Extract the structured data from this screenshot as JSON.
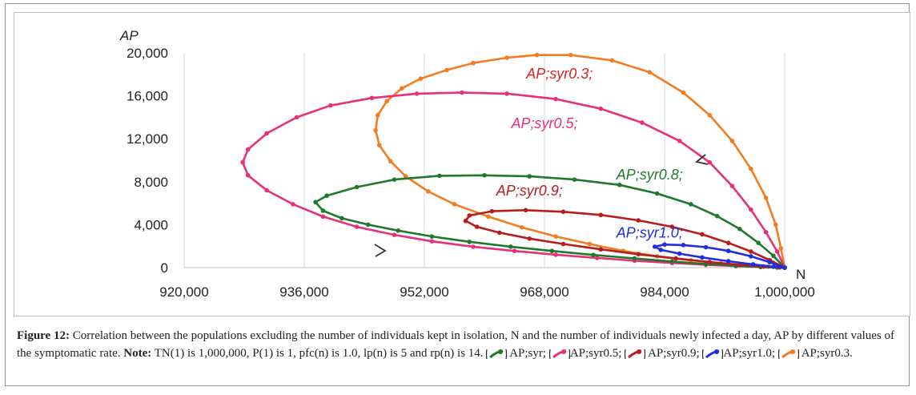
{
  "chart_data": {
    "type": "line",
    "title": "",
    "xlabel": "N",
    "ylabel": "AP",
    "xlim": [
      920000,
      1000000
    ],
    "ylim": [
      0,
      20000
    ],
    "x_ticks": [
      "920,000",
      "936,000",
      "952,000",
      "968,000",
      "984,000",
      "1,000,000"
    ],
    "y_ticks": [
      "0",
      "4,000",
      "8,000",
      "12,000",
      "16,000",
      "20,000"
    ],
    "x_tick_values": [
      920000,
      936000,
      952000,
      968000,
      984000,
      1000000
    ],
    "y_tick_values": [
      0,
      4000,
      8000,
      12000,
      16000,
      20000
    ],
    "grid": "vertical",
    "series": [
      {
        "name": "AP;syr0.3;",
        "color": "#f47c20",
        "x": [
          1000000,
          999500,
          998800,
          997500,
          995500,
          993000,
          990000,
          986500,
          982000,
          977000,
          971500,
          967000,
          963000,
          958500,
          955000,
          951500,
          949000,
          947000,
          945800,
          945500,
          946000,
          947500,
          949500,
          952500,
          956000,
          960500,
          965000,
          969500,
          974000,
          978500,
          983000,
          987500,
          991500,
          995000,
          997800,
          999400,
          1000000
        ],
        "y": [
          0,
          1800,
          4000,
          6500,
          9200,
          11800,
          14200,
          16300,
          18200,
          19300,
          19800,
          19800,
          19550,
          19050,
          18400,
          17600,
          16700,
          15500,
          14200,
          12800,
          11400,
          9900,
          8500,
          7100,
          5900,
          4750,
          3750,
          2900,
          2200,
          1550,
          1050,
          680,
          400,
          200,
          80,
          20,
          0
        ]
      },
      {
        "name": "AP;syr0.5;",
        "color": "#e8307a",
        "x": [
          1000000,
          999000,
          997500,
          995500,
          993000,
          990000,
          986000,
          981000,
          975500,
          969500,
          963000,
          957000,
          951000,
          945000,
          939500,
          935000,
          931000,
          928500,
          927800,
          928500,
          931000,
          934500,
          938500,
          943000,
          948000,
          953000,
          958500,
          964000,
          969500,
          975000,
          980000,
          985000,
          989500,
          993500,
          996800,
          999000,
          1000000
        ],
        "y": [
          0,
          1500,
          3300,
          5400,
          7600,
          9800,
          11800,
          13500,
          14800,
          15700,
          16200,
          16300,
          16200,
          15800,
          15100,
          14000,
          12500,
          11000,
          9800,
          8600,
          7200,
          5900,
          4750,
          3800,
          3050,
          2450,
          1950,
          1550,
          1200,
          900,
          640,
          430,
          260,
          140,
          60,
          15,
          0
        ]
      },
      {
        "name": "AP;syr0.8;",
        "color": "#1e7a2a",
        "x": [
          1000000,
          998500,
          996500,
          994000,
          991000,
          987500,
          983000,
          978000,
          972000,
          966000,
          960000,
          954000,
          948000,
          943000,
          939000,
          937500,
          938500,
          941000,
          944500,
          948500,
          953000,
          958000,
          963500,
          969000,
          974500,
          980000,
          985000,
          989500,
          993500,
          996800,
          999000,
          1000000
        ],
        "y": [
          0,
          1100,
          2300,
          3600,
          4800,
          5900,
          6900,
          7700,
          8200,
          8500,
          8600,
          8550,
          8200,
          7500,
          6700,
          6100,
          5300,
          4600,
          4000,
          3450,
          2900,
          2400,
          1950,
          1550,
          1180,
          850,
          570,
          340,
          170,
          60,
          10,
          0
        ]
      },
      {
        "name": "AP;syr0.9;",
        "color": "#b81c1c",
        "x": [
          1000000,
          998000,
          995500,
          992500,
          989000,
          985000,
          980500,
          975500,
          970500,
          965500,
          961000,
          958000,
          957500,
          959000,
          962000,
          966000,
          970500,
          975500,
          980500,
          985500,
          990000,
          994000,
          997200,
          999300,
          1000000
        ],
        "y": [
          0,
          700,
          1500,
          2300,
          3100,
          3800,
          4400,
          4900,
          5200,
          5350,
          5250,
          4850,
          4350,
          3800,
          3250,
          2700,
          2200,
          1700,
          1250,
          850,
          520,
          260,
          100,
          20,
          0
        ]
      },
      {
        "name": "AP;syr1.0;",
        "color": "#1f2ee0",
        "x": [
          1000000,
          998000,
          995500,
          992500,
          989500,
          986500,
          984000,
          982700,
          983500,
          986000,
          989000,
          992500,
          995800,
          998500,
          1000000
        ],
        "y": [
          0,
          500,
          1050,
          1550,
          1900,
          2100,
          2150,
          1950,
          1650,
          1300,
          950,
          600,
          300,
          80,
          0
        ]
      }
    ],
    "annotations": [
      {
        "text": "AP;syr0.3;",
        "x": 970000,
        "y": 17600,
        "color": "#e02020"
      },
      {
        "text": "AP;syr0.5;",
        "x": 968000,
        "y": 13000,
        "color": "#e8307a"
      },
      {
        "text": "AP;syr0.8;",
        "x": 982000,
        "y": 8200,
        "color": "#1e7a2a"
      },
      {
        "text": "AP;syr0.9;",
        "x": 966000,
        "y": 6700,
        "color": "#b81c1c"
      },
      {
        "text": "AP;syr1.0;",
        "x": 982000,
        "y": 2800,
        "color": "#1f2ee0"
      }
    ]
  },
  "caption": {
    "label": "Figure 12:",
    "text": " Correlation between the populations excluding the number of individuals kept in isolation, N and the number of individuals newly infected a day, AP by different values of the symptomatic rate. ",
    "note_label": "Note:",
    "note_text": " TN(1) is 1,000,000, P(1) is 1, pfc(n) is 1.0, lp(n) is 5 and rp(n) is 14.",
    "keys": [
      {
        "label": " AP;syr;",
        "color": "#1e7a2a"
      },
      {
        "label": "AP;syr0.5;",
        "color": "#e8307a"
      },
      {
        "label": " AP;syr0.9;",
        "color": "#b81c1c"
      },
      {
        "label": "AP;syr1.0;",
        "color": "#1f2ee0"
      },
      {
        "label": " AP;syr0.3.",
        "color": "#f47c20"
      }
    ]
  }
}
